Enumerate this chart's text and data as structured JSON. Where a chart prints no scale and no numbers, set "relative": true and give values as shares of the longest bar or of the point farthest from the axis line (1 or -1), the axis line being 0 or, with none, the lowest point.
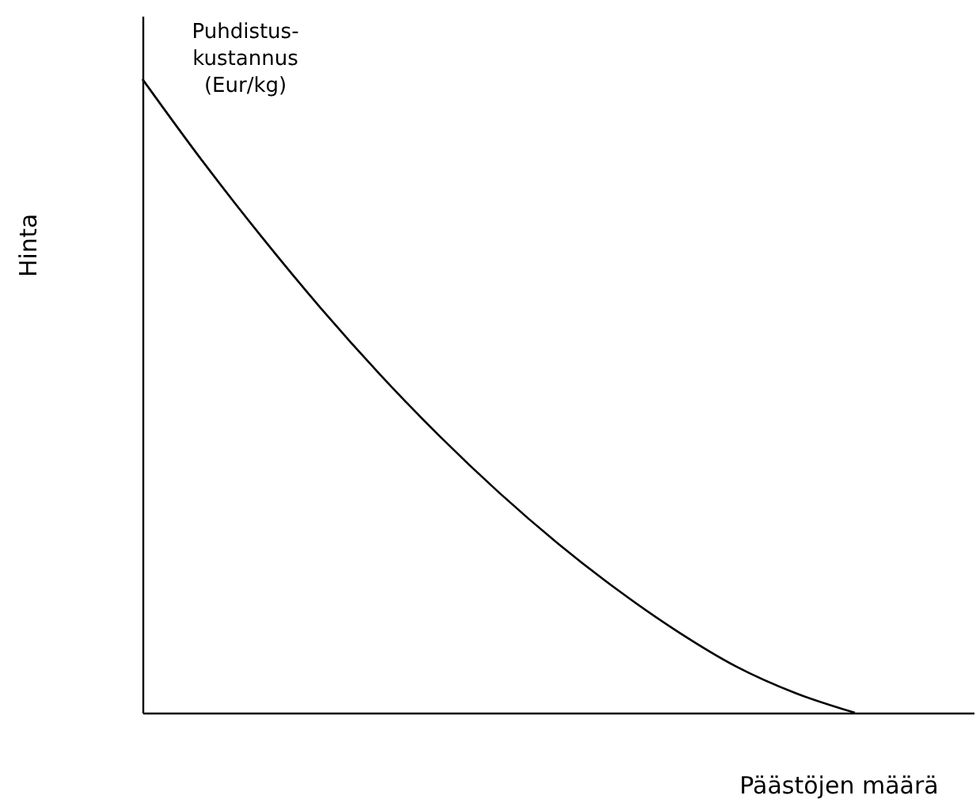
{
  "chart_data": {
    "type": "line",
    "relative": true,
    "xlabel": "Päästöjen määrä",
    "ylabel": "Hinta",
    "categories": [
      null,
      null,
      null,
      null,
      null,
      null,
      null,
      null,
      null,
      null,
      null,
      null,
      null,
      null,
      null
    ],
    "series": [
      {
        "name": "Puhdistus-\nkustannus\n(Eur/kg)",
        "color": "#000000",
        "values": [
          1.0,
          0.872,
          0.752,
          0.639,
          0.534,
          0.437,
          0.348,
          0.267,
          0.194,
          0.129,
          0.073,
          0.031,
          0.0,
          null,
          null
        ]
      }
    ],
    "grid": false,
    "marker": "none",
    "line_style": "solid",
    "tick_labels": false
  }
}
